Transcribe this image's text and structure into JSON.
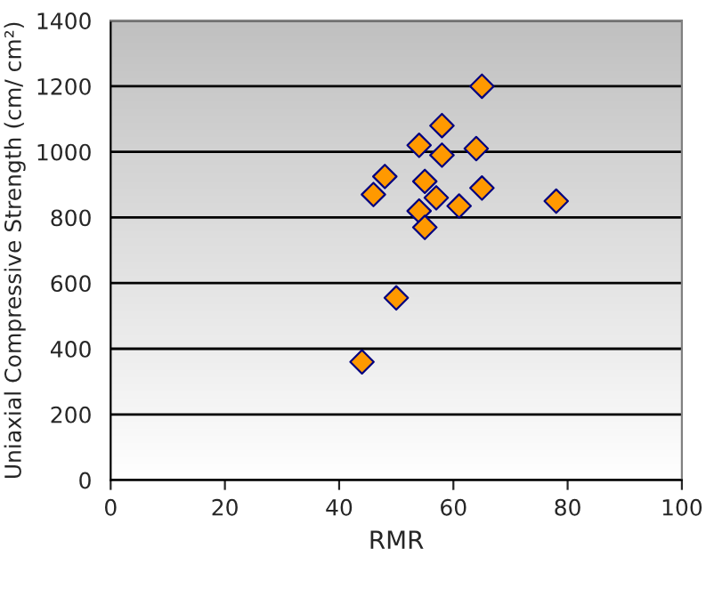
{
  "chart_data": {
    "type": "scatter",
    "xlabel": "RMR",
    "ylabel": "Uniaxial Compressive Strength (cm/ cm²)",
    "series": [
      {
        "color": "#ff9900",
        "x": [
          65,
          58,
          54,
          58,
          64,
          48,
          46,
          55,
          57,
          65,
          54,
          61,
          55,
          78,
          50,
          44
        ],
        "values": [
          1200,
          1080,
          1020,
          990,
          1010,
          925,
          870,
          910,
          860,
          890,
          820,
          835,
          770,
          850,
          555,
          360
        ]
      }
    ],
    "xlim": [
      0,
      100
    ],
    "xticks": [
      0,
      20,
      40,
      60,
      80,
      100
    ],
    "ylim": [
      0,
      1400
    ],
    "yticks": [
      0,
      200,
      400,
      600,
      800,
      1000,
      1200,
      1400
    ],
    "grid": "y",
    "marker": "diamond",
    "legend": false
  }
}
